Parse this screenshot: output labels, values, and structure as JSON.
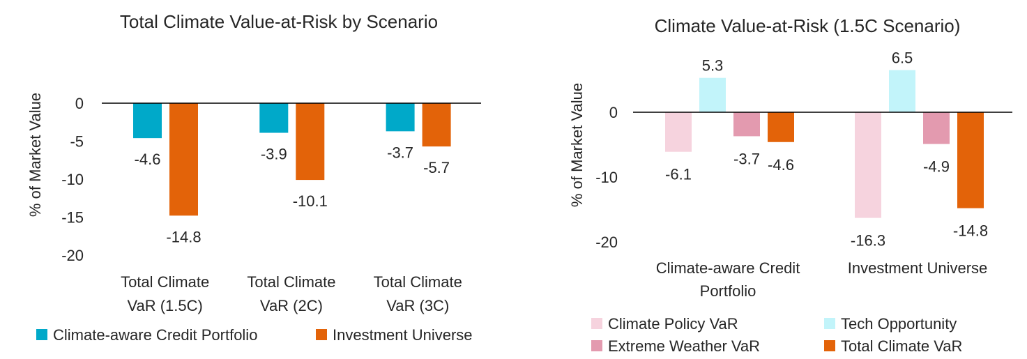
{
  "chart_data": [
    {
      "type": "bar",
      "title": "Total Climate Value-at-Risk by Scenario",
      "ylabel": "% of Market Value",
      "xlabel": "",
      "ylim": [
        -20,
        0
      ],
      "yticks": [
        0,
        -5,
        -10,
        -15,
        -20
      ],
      "grid": false,
      "legend_position": "bottom",
      "categories": [
        [
          "Total Climate",
          "VaR (1.5C)"
        ],
        [
          "Total Climate",
          "VaR (2C)"
        ],
        [
          "Total Climate",
          "VaR (3C)"
        ]
      ],
      "series": [
        {
          "name": "Climate-aware Credit Portfolio",
          "color": "#00A9C9",
          "values": [
            -4.6,
            -3.9,
            -3.7
          ],
          "labels": [
            "-4.6",
            "-3.9",
            "-3.7"
          ]
        },
        {
          "name": "Investment Universe",
          "color": "#E36309",
          "values": [
            -14.8,
            -10.1,
            -5.7
          ],
          "labels": [
            "-14.8",
            "-10.1",
            "-5.7"
          ]
        }
      ]
    },
    {
      "type": "bar",
      "title": "Climate Value-at-Risk (1.5C Scenario)",
      "ylabel": "% of Market Value",
      "xlabel": "",
      "ylim": [
        -20,
        5
      ],
      "yticks": [
        0,
        -10,
        -20
      ],
      "grid": false,
      "legend_position": "bottom",
      "categories": [
        [
          "Climate-aware Credit",
          "Portfolio"
        ],
        [
          "Investment Universe"
        ]
      ],
      "series": [
        {
          "name": "Climate Policy VaR",
          "color": "#F6D3DE",
          "values": [
            -6.1,
            -16.3
          ],
          "labels": [
            "-6.1",
            "-16.3"
          ]
        },
        {
          "name": "Tech Opportunity",
          "color": "#C2F4FA",
          "values": [
            5.3,
            6.5
          ],
          "labels": [
            "5.3",
            "6.5"
          ]
        },
        {
          "name": "Extreme Weather VaR",
          "color": "#E39AAF",
          "values": [
            -3.7,
            -4.9
          ],
          "labels": [
            "-3.7",
            "-4.9"
          ]
        },
        {
          "name": "Total Climate VaR",
          "color": "#E36309",
          "values": [
            -4.6,
            -14.8
          ],
          "labels": [
            "-4.6",
            "-14.8"
          ]
        }
      ]
    }
  ]
}
